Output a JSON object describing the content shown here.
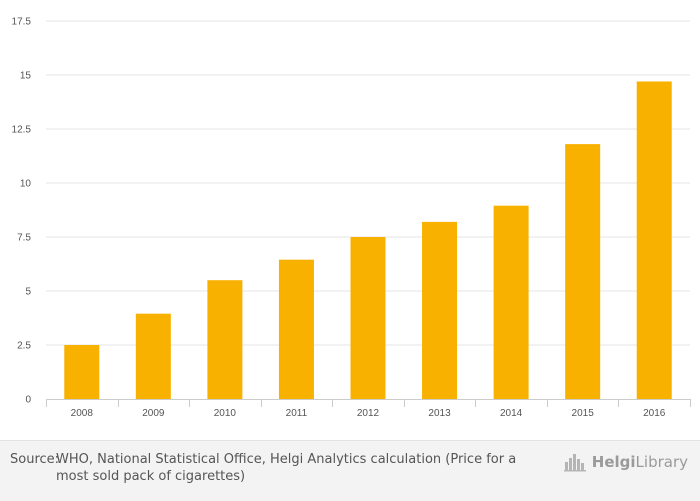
{
  "chart_data": {
    "type": "bar",
    "categories": [
      "2008",
      "2009",
      "2010",
      "2011",
      "2012",
      "2013",
      "2014",
      "2015",
      "2016"
    ],
    "values": [
      2.5,
      3.95,
      5.5,
      6.45,
      7.5,
      8.2,
      8.95,
      11.8,
      14.7
    ],
    "yticks": [
      "0",
      "2.5",
      "5",
      "7.5",
      "10",
      "12.5",
      "15",
      "17.5"
    ],
    "ylim": [
      0,
      17.5
    ],
    "grid": true,
    "bar_color": "#f9b100"
  },
  "footer": {
    "source_prefix": "Source:",
    "source_text": "WHO, National Statistical Office, Helgi Analytics calculation (Price for a most sold pack of cigarettes)",
    "logo_text_bold": "Helgi",
    "logo_text": "Library"
  }
}
